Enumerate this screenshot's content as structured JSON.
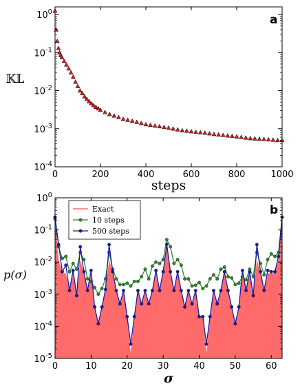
{
  "chart_data": [
    {
      "type": "scatter",
      "panel_label": "a",
      "xlabel": "steps",
      "ylabel": "𝕂𝕃",
      "xlim": [
        0,
        1000
      ],
      "ylim_log10": [
        -4,
        0.2
      ],
      "y_scale": "log",
      "x_ticks": [
        "0",
        "200",
        "400",
        "600",
        "800",
        "1000"
      ],
      "y_ticks": [
        "10^-4",
        "10^-3",
        "10^-2",
        "10^-1",
        "10^0"
      ],
      "marker": "triangle",
      "marker_color": "#cc2222",
      "series": [
        {
          "x": [
            0,
            5,
            10,
            15,
            20,
            25,
            30,
            40,
            50,
            60,
            70,
            80,
            90,
            100,
            110,
            120,
            130,
            140,
            150,
            160,
            170,
            180,
            190,
            200,
            220,
            240,
            260,
            280,
            300,
            320,
            340,
            360,
            380,
            400,
            420,
            440,
            460,
            480,
            500,
            520,
            540,
            560,
            580,
            600,
            620,
            640,
            660,
            680,
            700,
            720,
            740,
            760,
            780,
            800,
            820,
            840,
            860,
            880,
            900,
            920,
            940,
            960,
            980,
            1000
          ],
          "y": [
            1.25,
            0.4,
            0.2,
            0.13,
            0.1,
            0.085,
            0.075,
            0.06,
            0.048,
            0.038,
            0.03,
            0.023,
            0.017,
            0.013,
            0.01,
            0.0085,
            0.007,
            0.006,
            0.0052,
            0.0046,
            0.0041,
            0.0037,
            0.0034,
            0.0031,
            0.0027,
            0.0024,
            0.0022,
            0.002,
            0.0018,
            0.0017,
            0.0016,
            0.0015,
            0.0014,
            0.0013,
            0.00125,
            0.0012,
            0.00115,
            0.0011,
            0.00105,
            0.001,
            0.00095,
            0.0009,
            0.00088,
            0.00085,
            0.00082,
            0.0008,
            0.00078,
            0.00075,
            0.00072,
            0.0007,
            0.00068,
            0.00066,
            0.00064,
            0.00062,
            0.0006,
            0.00058,
            0.00056,
            0.00055,
            0.00054,
            0.00053,
            0.00052,
            0.00051,
            0.0005,
            0.0005
          ]
        }
      ]
    },
    {
      "type": "line",
      "panel_label": "b",
      "xlabel": "σ",
      "ylabel": "p(σ)",
      "xlim": [
        0,
        63
      ],
      "ylim_log10": [
        -5,
        0
      ],
      "y_scale": "log",
      "x_ticks": [
        "0",
        "10",
        "20",
        "30",
        "40",
        "50",
        "60"
      ],
      "y_ticks": [
        "10^-5",
        "10^-4",
        "10^-3",
        "10^-2",
        "10^-1",
        "10^0"
      ],
      "legend_position": "top-left",
      "series": [
        {
          "name": "Exact",
          "style": "area",
          "color": "#ff6b6b",
          "y": [
            0.25,
            0.012,
            0.0045,
            0.0045,
            0.0012,
            0.0045,
            0.0008,
            0.012,
            0.0045,
            0.0012,
            0.0045,
            0.0004,
            0.0001,
            0.0004,
            0.0012,
            0.012,
            0.0045,
            0.0012,
            0.00045,
            0.0012,
            0.0002,
            1.5e-05,
            0.0002,
            0.0012,
            0.00045,
            0.0012,
            0.0004,
            0.0012,
            0.0045,
            0.0012,
            0.0045,
            0.035,
            0.0045,
            0.0012,
            0.0045,
            0.0012,
            0.0004,
            0.0012,
            0.00045,
            0.0012,
            0.0002,
            0.0002,
            1.5e-05,
            0.0002,
            0.0012,
            0.00045,
            0.0012,
            0.0045,
            0.0012,
            0.0004,
            0.0001,
            0.0004,
            0.0045,
            0.0012,
            0.0045,
            0.0008,
            0.012,
            0.0045,
            0.0012,
            0.0045,
            0.0045,
            0.0045,
            0.012,
            0.25
          ]
        },
        {
          "name": "10 steps",
          "style": "line-markers",
          "color": "#2e8b2e",
          "y": [
            0.22,
            0.03,
            0.013,
            0.015,
            0.005,
            0.009,
            0.006,
            0.02,
            0.012,
            0.003,
            0.0025,
            0.0016,
            0.001,
            0.0015,
            0.003,
            0.02,
            0.006,
            0.003,
            0.002,
            0.002,
            0.0022,
            0.0018,
            0.0025,
            0.0025,
            0.0035,
            0.006,
            0.003,
            0.0075,
            0.01,
            0.009,
            0.012,
            0.05,
            0.03,
            0.009,
            0.012,
            0.008,
            0.003,
            0.003,
            0.0018,
            0.0019,
            0.0023,
            0.0015,
            0.0018,
            0.003,
            0.004,
            0.003,
            0.006,
            0.007,
            0.0035,
            0.0032,
            0.002,
            0.0022,
            0.0035,
            0.0028,
            0.006,
            0.0035,
            0.02,
            0.009,
            0.004,
            0.012,
            0.018,
            0.015,
            0.02,
            0.25
          ]
        },
        {
          "name": "500 steps",
          "style": "line-markers",
          "color": "#1a1aa6",
          "y": [
            0.25,
            0.035,
            0.005,
            0.008,
            0.0013,
            0.0055,
            0.0009,
            0.03,
            0.005,
            0.0013,
            0.0055,
            0.0004,
            0.00012,
            0.0004,
            0.0014,
            0.035,
            0.005,
            0.0013,
            0.0005,
            0.0013,
            0.0002,
            2.8e-05,
            0.0002,
            0.0013,
            0.0005,
            0.0013,
            0.0005,
            0.0013,
            0.0055,
            0.0013,
            0.005,
            0.036,
            0.005,
            0.0013,
            0.005,
            0.0013,
            0.0004,
            0.0013,
            0.0005,
            0.0013,
            0.0002,
            0.0002,
            2.8e-05,
            0.0002,
            0.0013,
            0.0005,
            0.0013,
            0.005,
            0.0013,
            0.0004,
            0.00012,
            0.0004,
            0.0055,
            0.0013,
            0.005,
            0.0009,
            0.035,
            0.005,
            0.0013,
            0.0055,
            0.005,
            0.005,
            0.015,
            0.25
          ]
        }
      ]
    }
  ]
}
